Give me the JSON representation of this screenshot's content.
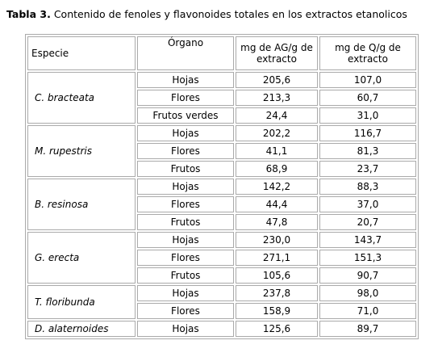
{
  "header": {
    "label": "Tabla 3.",
    "title": "Contenido de fenoles y flavonoides totales en los extractos etanolicos"
  },
  "table": {
    "columns": [
      "Especie",
      "Órgano",
      "mg de AG/g de extracto",
      "mg de Q/g de extracto"
    ],
    "groups": [
      {
        "species": "C. bracteata",
        "rows": [
          [
            "Hojas",
            "205,6",
            "107,0"
          ],
          [
            "Flores",
            "213,3",
            "60,7"
          ],
          [
            "Frutos verdes",
            "24,4",
            "31,0"
          ]
        ]
      },
      {
        "species": "M. rupestris",
        "rows": [
          [
            "Hojas",
            "202,2",
            "116,7"
          ],
          [
            "Flores",
            "41,1",
            "81,3"
          ],
          [
            "Frutos",
            "68,9",
            "23,7"
          ]
        ]
      },
      {
        "species": "B. resinosa",
        "rows": [
          [
            "Hojas",
            "142,2",
            "88,3"
          ],
          [
            "Flores",
            "44,4",
            "37,0"
          ],
          [
            "Frutos",
            "47,8",
            "20,7"
          ]
        ]
      },
      {
        "species": "G. erecta",
        "rows": [
          [
            "Hojas",
            "230,0",
            "143,7"
          ],
          [
            "Flores",
            "271,1",
            "151,3"
          ],
          [
            "Frutos",
            "105,6",
            "90,7"
          ]
        ]
      },
      {
        "species": "T. floribunda",
        "rows": [
          [
            "Hojas",
            "237,8",
            "98,0"
          ],
          [
            "Flores",
            "158,9",
            "71,0"
          ]
        ]
      },
      {
        "species": "D. alaternoides",
        "rows": [
          [
            "Hojas",
            "125,6",
            "89,7"
          ]
        ]
      }
    ]
  }
}
